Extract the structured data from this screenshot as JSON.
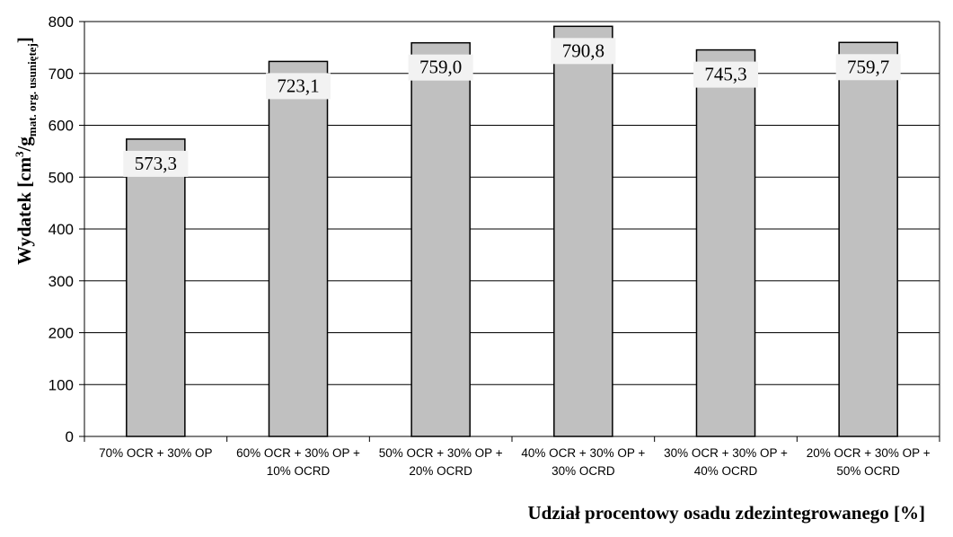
{
  "chart_data": {
    "type": "bar",
    "categories": [
      [
        "70% OCR + 30% OP"
      ],
      [
        "60% OCR + 30% OP +",
        "10% OCRD"
      ],
      [
        "50% OCR + 30% OP +",
        "20% OCRD"
      ],
      [
        "40% OCR + 30% OP +",
        "30% OCRD"
      ],
      [
        "30% OCR + 30% OP +",
        "40% OCRD"
      ],
      [
        "20% OCR + 30% OP +",
        "50% OCRD"
      ]
    ],
    "values": [
      573.3,
      723.1,
      759.0,
      790.8,
      745.3,
      759.7
    ],
    "data_labels": [
      "573,3",
      "723,1",
      "759,0",
      "790,8",
      "745,3",
      "759,7"
    ],
    "xlabel": "Udział procentowy osadu zdezintegrowanego [%]",
    "ylabel": {
      "main": "Wydatek  [cm",
      "sup": "3",
      "mid": "/g",
      "sub": "mat. org. usuniętej",
      "end": "]"
    },
    "ylim": [
      0,
      800
    ],
    "yticks": [
      "0",
      "100",
      "200",
      "300",
      "400",
      "500",
      "600",
      "700",
      "800"
    ],
    "grid": true,
    "legend": "none",
    "colors": {
      "bar": "#c0c0c0",
      "bar_stroke": "#000000",
      "grid": "#000000",
      "label_bg": "#f2f2f2"
    }
  }
}
